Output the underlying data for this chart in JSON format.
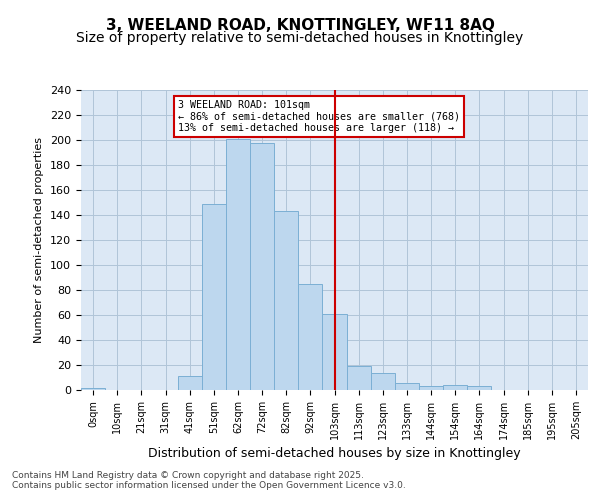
{
  "title": "3, WEELAND ROAD, KNOTTINGLEY, WF11 8AQ",
  "subtitle": "Size of property relative to semi-detached houses in Knottingley",
  "xlabel": "Distribution of semi-detached houses by size in Knottingley",
  "ylabel": "Number of semi-detached properties",
  "bin_labels": [
    "0sqm",
    "10sqm",
    "21sqm",
    "31sqm",
    "41sqm",
    "51sqm",
    "62sqm",
    "72sqm",
    "82sqm",
    "92sqm",
    "103sqm",
    "113sqm",
    "123sqm",
    "133sqm",
    "144sqm",
    "154sqm",
    "164sqm",
    "174sqm",
    "185sqm",
    "195sqm",
    "205sqm"
  ],
  "bar_heights": [
    2,
    0,
    0,
    0,
    11,
    149,
    201,
    198,
    143,
    85,
    61,
    19,
    14,
    6,
    3,
    4,
    3,
    0,
    0,
    0,
    0
  ],
  "bar_color": "#bdd7ee",
  "bar_edge_color": "#7bafd4",
  "property_label": "3 WEELAND ROAD: 101sqm",
  "pct_smaller": 86,
  "pct_smaller_count": 768,
  "pct_larger": 13,
  "pct_larger_count": 118,
  "vline_x": 10.0,
  "annotation_box_color": "#ffffff",
  "annotation_box_edge": "#cc0000",
  "vline_color": "#cc0000",
  "grid_color": "#b0c4d8",
  "background_color": "#dce8f5",
  "ylim": [
    0,
    240
  ],
  "yticks": [
    0,
    20,
    40,
    60,
    80,
    100,
    120,
    140,
    160,
    180,
    200,
    220,
    240
  ],
  "footer": "Contains HM Land Registry data © Crown copyright and database right 2025.\nContains public sector information licensed under the Open Government Licence v3.0.",
  "title_fontsize": 11,
  "subtitle_fontsize": 10
}
